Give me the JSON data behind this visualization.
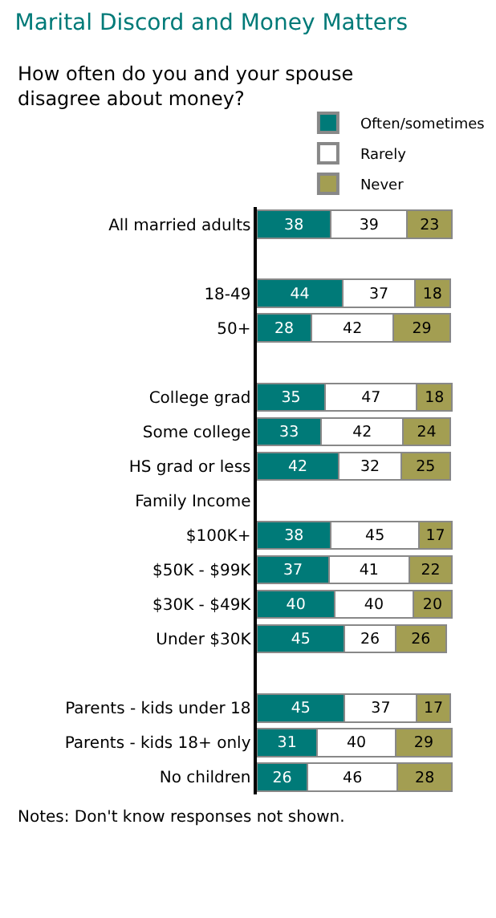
{
  "chart_data": {
    "type": "bar",
    "orientation": "horizontal",
    "stacked": true,
    "title": "Marital Discord and Money Matters",
    "subtitle": "How often do you and your spouse disagree about money?",
    "categories": [
      "All married adults",
      null,
      "18-49",
      "50+",
      null,
      "College grad",
      "Some college",
      "HS grad or less",
      "Family Income",
      "$100K+",
      "$50K - $99K",
      "$30K - $49K",
      "Under $30K",
      null,
      "Parents - kids under 18",
      "Parents - kids 18+ only",
      "No children"
    ],
    "series": [
      {
        "name": "Often/sometimes",
        "color": "#007a78",
        "values": [
          38,
          null,
          44,
          28,
          null,
          35,
          33,
          42,
          null,
          38,
          37,
          40,
          45,
          null,
          45,
          31,
          26
        ]
      },
      {
        "name": "Rarely",
        "color": "#ffffff",
        "values": [
          39,
          null,
          37,
          42,
          null,
          47,
          42,
          32,
          null,
          45,
          41,
          40,
          26,
          null,
          37,
          40,
          46
        ]
      },
      {
        "name": "Never",
        "color": "#a39e52",
        "values": [
          23,
          null,
          18,
          29,
          null,
          18,
          24,
          25,
          null,
          17,
          22,
          20,
          26,
          null,
          17,
          29,
          28
        ]
      }
    ],
    "data_labels": true,
    "legend": "top right",
    "tick_labels": "y",
    "annotations": [
      "Notes: Don't know responses not shown."
    ]
  }
}
